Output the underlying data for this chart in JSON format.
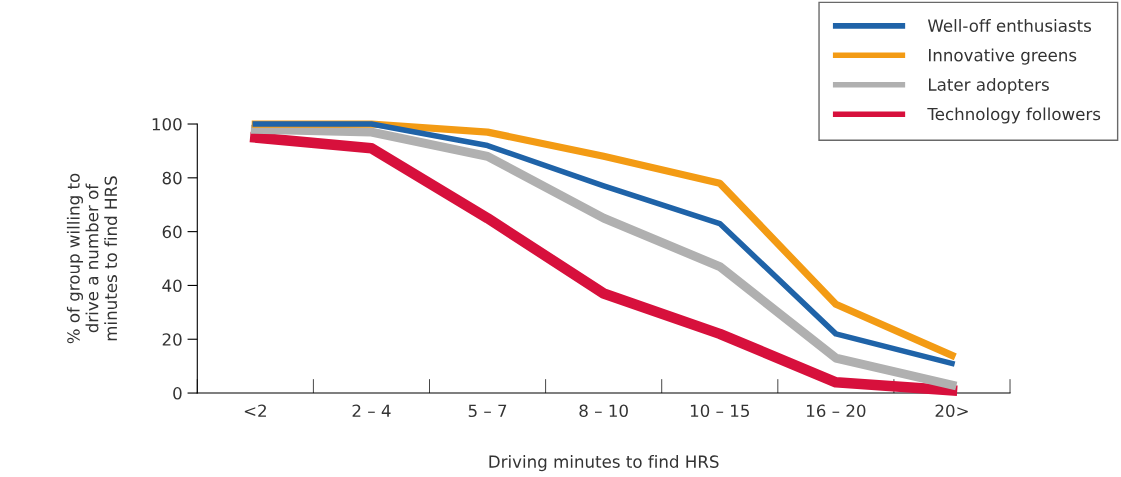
{
  "chart_data": {
    "type": "line",
    "xlabel": "Driving minutes to find HRS",
    "ylabel": "% of group willing to\ndrive a number of\nminutes to find HRS",
    "categories": [
      "<2",
      "2 – 4",
      "5 – 7",
      "8 – 10",
      "10 – 15",
      "16 – 20",
      "20>"
    ],
    "series": [
      {
        "name": "Well-off enthusiasts",
        "color": "#1f63a8",
        "values": [
          100,
          100,
          92,
          77,
          63,
          22,
          11
        ]
      },
      {
        "name": "Innovative greens",
        "color": "#f39b14",
        "values": [
          100,
          100,
          97,
          88,
          78,
          33,
          14
        ]
      },
      {
        "name": "Later adopters",
        "color": "#b0b0b0",
        "values": [
          98,
          97,
          88,
          65,
          47,
          13,
          3
        ]
      },
      {
        "name": "Technology followers",
        "color": "#d7103c",
        "values": [
          95,
          91,
          65,
          37,
          22,
          4,
          1
        ]
      }
    ],
    "ylim": [
      0,
      100
    ],
    "yticks": [
      0,
      20,
      40,
      60,
      80,
      100
    ],
    "grid": false,
    "legend": "top right",
    "marker": "none",
    "line_style": "solid"
  }
}
